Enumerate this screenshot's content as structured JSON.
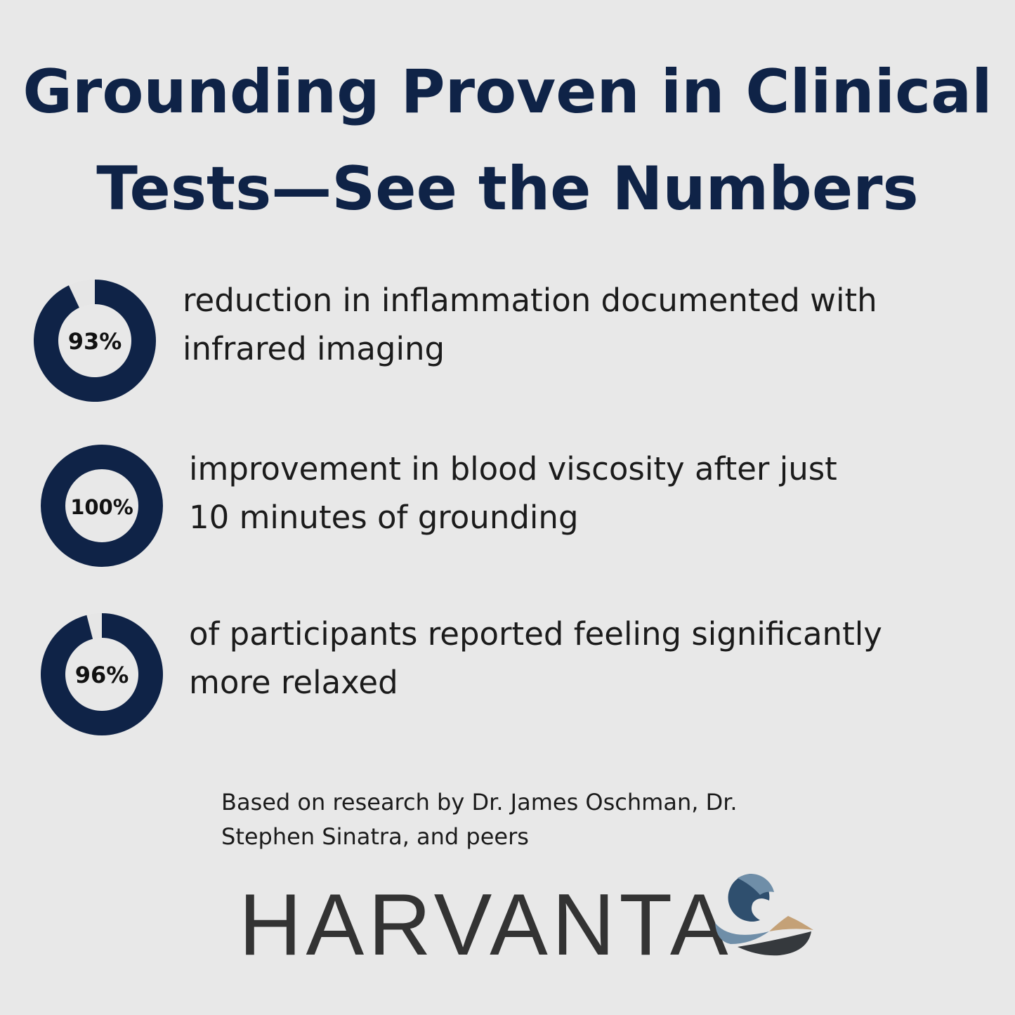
{
  "title": {
    "line1": "Grounding Proven in Clinical",
    "line2": "Tests—See the Numbers"
  },
  "chart_data": {
    "type": "pie",
    "variant": "donut",
    "colors": {
      "fill": "#0f2347",
      "remainder": "#e6e6e6"
    },
    "items": [
      {
        "value": 93,
        "label": "93%",
        "text_line1": "reduction in inflammation documented with",
        "text_line2": "infrared imaging"
      },
      {
        "value": 100,
        "label": "100%",
        "text_line1": "improvement in blood viscosity after just",
        "text_line2": "10 minutes of grounding"
      },
      {
        "value": 96,
        "label": "96%",
        "text_line1": "of participants reported feeling significantly",
        "text_line2": "more relaxed"
      }
    ]
  },
  "source": {
    "line1": "Based on research by Dr. James Oschman, Dr.",
    "line2": "Stephen Sinatra, and peers"
  },
  "brand": {
    "name": "HARVANTA",
    "colors": [
      "#2f4f6e",
      "#6f8ea8",
      "#c4a177",
      "#35393d"
    ]
  }
}
